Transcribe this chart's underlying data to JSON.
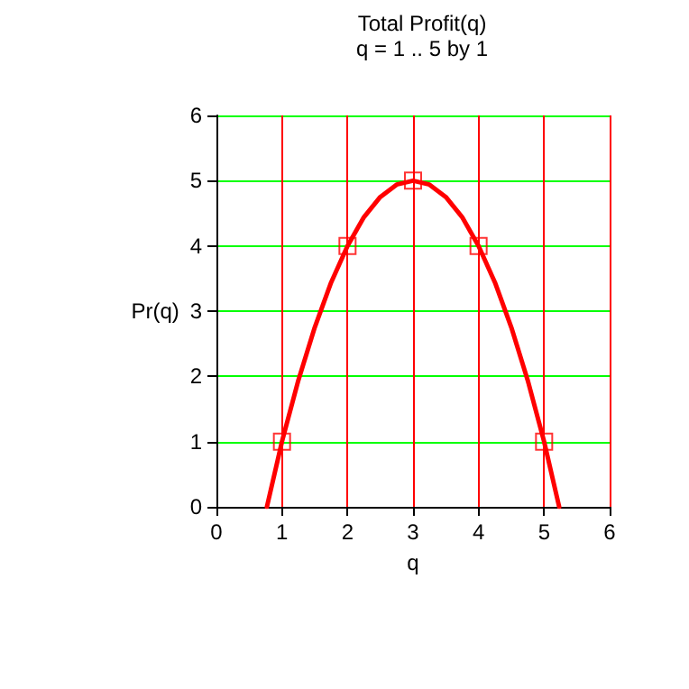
{
  "chart_data": {
    "type": "line",
    "title": "Total Profit(q)",
    "subtitle": "q = 1 .. 5 by 1",
    "xlabel": "q",
    "ylabel": "Pr(q)",
    "xlim": [
      0,
      6
    ],
    "xticks": [
      0,
      1,
      2,
      3,
      4,
      5,
      6
    ],
    "ylim": [
      0,
      6
    ],
    "yticks": [
      0,
      1,
      2,
      3,
      4,
      5,
      6
    ],
    "grid": true,
    "series": [
      {
        "color": "#ff0000",
        "marker": "none",
        "line_style": "solid",
        "x": [
          0.77,
          1,
          1.25,
          1.5,
          1.75,
          2,
          2.25,
          2.5,
          2.75,
          3,
          3.25,
          3.5,
          3.75,
          4,
          4.25,
          4.5,
          4.75,
          5,
          5.23
        ],
        "values": [
          0,
          1,
          1.94,
          2.75,
          3.44,
          4,
          4.44,
          4.75,
          4.94,
          5,
          4.94,
          4.75,
          4.44,
          4,
          3.44,
          2.75,
          1.94,
          1,
          0
        ]
      },
      {
        "type": "scatter",
        "color": "#ff0000",
        "marker": "square",
        "x": [
          1,
          2,
          3,
          4,
          5
        ],
        "values": [
          1,
          4,
          5,
          4,
          1
        ]
      }
    ]
  }
}
